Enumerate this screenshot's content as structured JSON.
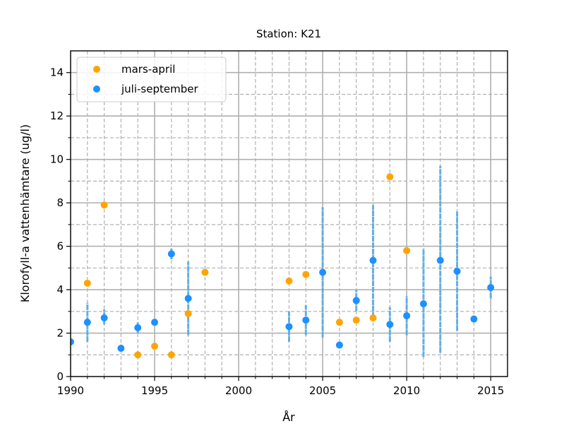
{
  "chart_data": {
    "type": "scatter",
    "title": "Station: K21",
    "xlabel": "År",
    "ylabel": "Klorofyll-a vattenhämtare (ug/l)",
    "xlim": [
      1990,
      2016
    ],
    "ylim": [
      0,
      15
    ],
    "x_ticks": [
      1990,
      1995,
      2000,
      2005,
      2010,
      2015
    ],
    "x_tick_labels": [
      "1990",
      "1995",
      "2000",
      "2005",
      "2010",
      "2015"
    ],
    "y_ticks": [
      0,
      2,
      4,
      6,
      8,
      10,
      12,
      14
    ],
    "y_tick_labels": [
      "0",
      "2",
      "4",
      "6",
      "8",
      "10",
      "12",
      "14"
    ],
    "grid": true,
    "legend_position": "top-left",
    "series": [
      {
        "name": "mars-april",
        "color": "#FFA500",
        "points": [
          {
            "x": 1991,
            "y": 4.3
          },
          {
            "x": 1992,
            "y": 7.9
          },
          {
            "x": 1994,
            "y": 1.0
          },
          {
            "x": 1995,
            "y": 1.4
          },
          {
            "x": 1996,
            "y": 1.0
          },
          {
            "x": 1997,
            "y": 2.9
          },
          {
            "x": 1998,
            "y": 4.8
          },
          {
            "x": 2003,
            "y": 4.4
          },
          {
            "x": 2004,
            "y": 4.7
          },
          {
            "x": 2006,
            "y": 2.5
          },
          {
            "x": 2007,
            "y": 2.6
          },
          {
            "x": 2008,
            "y": 2.7
          },
          {
            "x": 2009,
            "y": 9.2
          },
          {
            "x": 2010,
            "y": 5.8
          }
        ]
      },
      {
        "name": "juli-september",
        "color": "#1E90FF",
        "points": [
          {
            "x": 1990,
            "y": 1.6
          },
          {
            "x": 1991,
            "y": 2.5,
            "min": 1.6,
            "max": 3.4
          },
          {
            "x": 1992,
            "y": 2.7,
            "min": 2.4,
            "max": 3.1
          },
          {
            "x": 1993,
            "y": 1.3,
            "min": 1.2,
            "max": 1.5
          },
          {
            "x": 1994,
            "y": 2.25,
            "min": 2.0,
            "max": 2.5
          },
          {
            "x": 1995,
            "y": 2.5
          },
          {
            "x": 1996,
            "y": 5.65,
            "min": 5.4,
            "max": 5.9
          },
          {
            "x": 1997,
            "y": 3.6,
            "min": 1.9,
            "max": 5.3
          },
          {
            "x": 2003,
            "y": 2.3,
            "min": 1.6,
            "max": 3.0
          },
          {
            "x": 2004,
            "y": 2.6,
            "min": 1.9,
            "max": 3.3
          },
          {
            "x": 2005,
            "y": 4.8,
            "min": 1.8,
            "max": 7.8
          },
          {
            "x": 2006,
            "y": 1.45,
            "min": 1.3,
            "max": 1.6
          },
          {
            "x": 2007,
            "y": 3.5,
            "min": 3.0,
            "max": 4.0
          },
          {
            "x": 2008,
            "y": 5.35,
            "min": 2.7,
            "max": 7.9
          },
          {
            "x": 2009,
            "y": 2.4,
            "min": 1.6,
            "max": 3.2
          },
          {
            "x": 2010,
            "y": 2.8,
            "min": 1.9,
            "max": 3.7
          },
          {
            "x": 2011,
            "y": 3.35,
            "min": 0.9,
            "max": 5.9
          },
          {
            "x": 2012,
            "y": 5.35,
            "min": 1.1,
            "max": 9.7
          },
          {
            "x": 2013,
            "y": 4.85,
            "min": 2.1,
            "max": 7.6
          },
          {
            "x": 2014,
            "y": 2.65,
            "min": 2.5,
            "max": 2.8
          },
          {
            "x": 2015,
            "y": 4.1,
            "min": 3.6,
            "max": 4.6
          }
        ]
      }
    ]
  }
}
